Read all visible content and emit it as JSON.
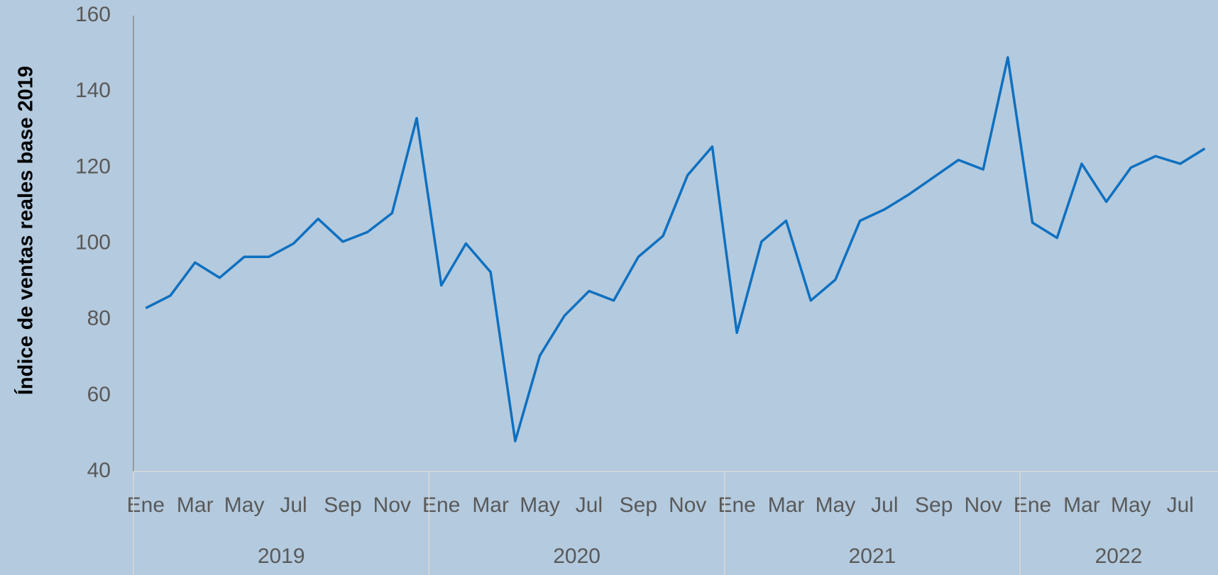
{
  "chart_data": {
    "type": "line",
    "y_label": "Índice de ventas reales base 2019",
    "categories": [
      "Ene",
      null,
      "Mar",
      null,
      "May",
      null,
      "Jul",
      null,
      "Sep",
      null,
      "Nov",
      null,
      "Ene",
      null,
      "Mar",
      null,
      "May",
      null,
      "Jul",
      null,
      "Sep",
      null,
      "Nov",
      null,
      "Ene",
      null,
      "Mar",
      null,
      "May",
      null,
      "Jul",
      null,
      "Sep",
      null,
      "Nov",
      null,
      "Ene",
      null,
      "Mar",
      null,
      "May",
      null,
      "Jul",
      null
    ],
    "year_groups": [
      "2019",
      "2020",
      "2021",
      "2022"
    ],
    "series": [
      {
        "name": "Índice",
        "color": "#0e70c0",
        "values": [
          83,
          86.3,
          95,
          91,
          96.5,
          96.5,
          100,
          106.5,
          100.5,
          103,
          108,
          133,
          89,
          100,
          92.5,
          48,
          70.5,
          81,
          87.5,
          85,
          96.5,
          102,
          118,
          125.5,
          76.5,
          100.5,
          106,
          85,
          90.5,
          106,
          109,
          113,
          117.5,
          122,
          119.5,
          149,
          105.5,
          101.5,
          121,
          111,
          120,
          123,
          121,
          125
        ]
      }
    ],
    "ylim": [
      40,
      160
    ],
    "yticks": [
      40,
      60,
      80,
      100,
      120,
      140,
      160
    ],
    "grid": false
  }
}
